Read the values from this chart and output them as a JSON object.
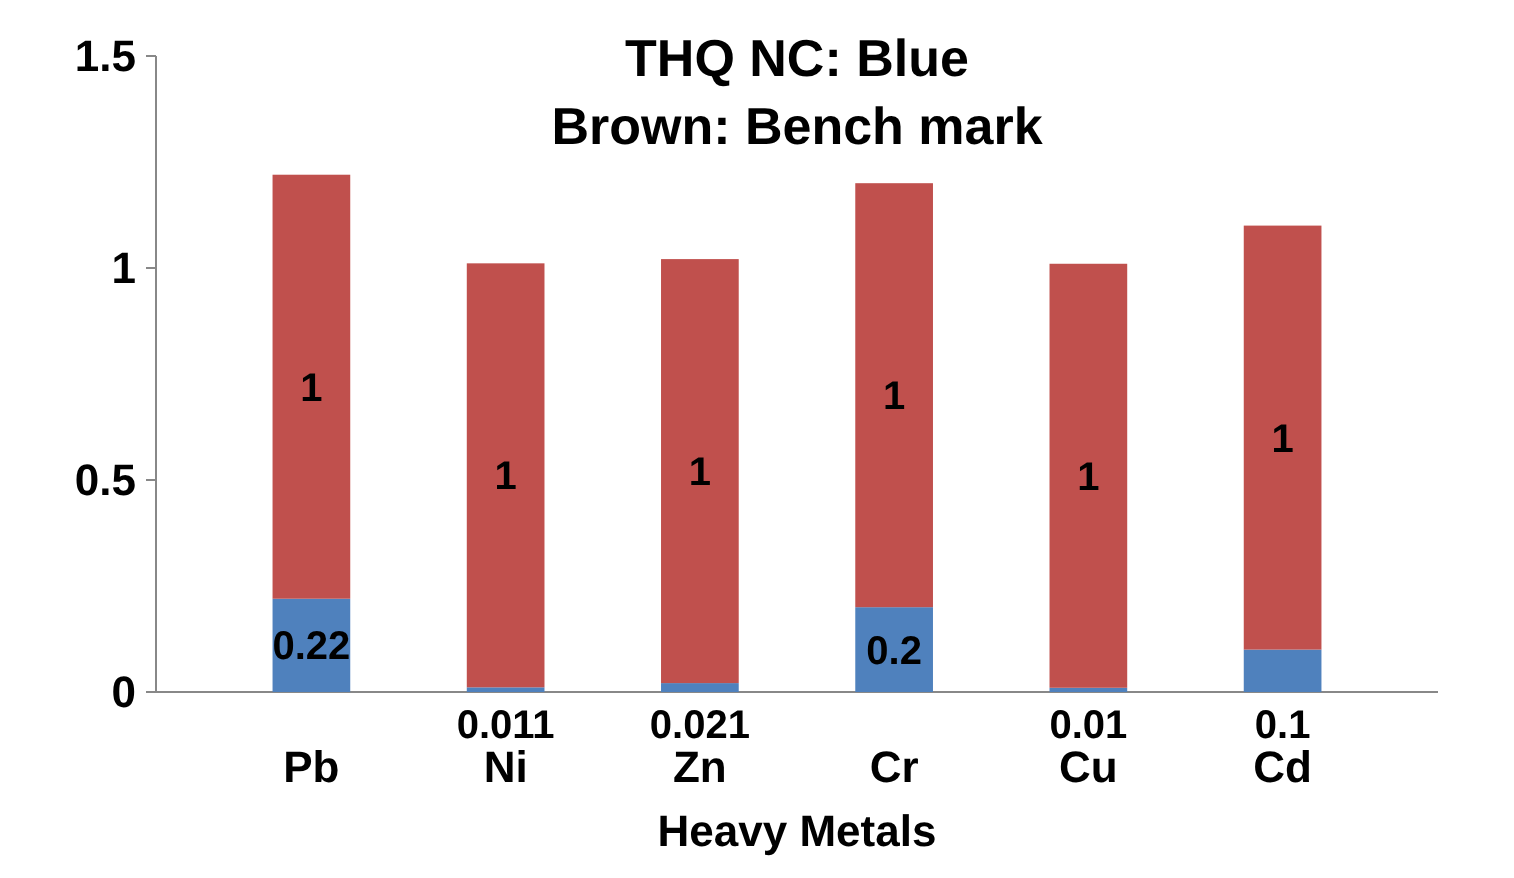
{
  "chart_data": {
    "type": "bar",
    "title": "THQ NC: Blue",
    "subtitle": "Brown: Bench mark",
    "xlabel": "Heavy Metals",
    "categories": [
      "Pb",
      "Ni",
      "Zn",
      "Cr",
      "Cu",
      "Cd"
    ],
    "stacked": true,
    "data_labels": true,
    "series": [
      {
        "color": "#4f81bd",
        "values": [
          0.22,
          0.011,
          0.021,
          0.2,
          0.01,
          0.1
        ]
      },
      {
        "color": "#c0504d",
        "values": [
          1,
          1,
          1,
          1,
          1,
          1
        ]
      }
    ],
    "ylim": [
      0,
      1.5
    ],
    "yticks": [
      0,
      0.5,
      1,
      1.5
    ],
    "grid": false
  }
}
